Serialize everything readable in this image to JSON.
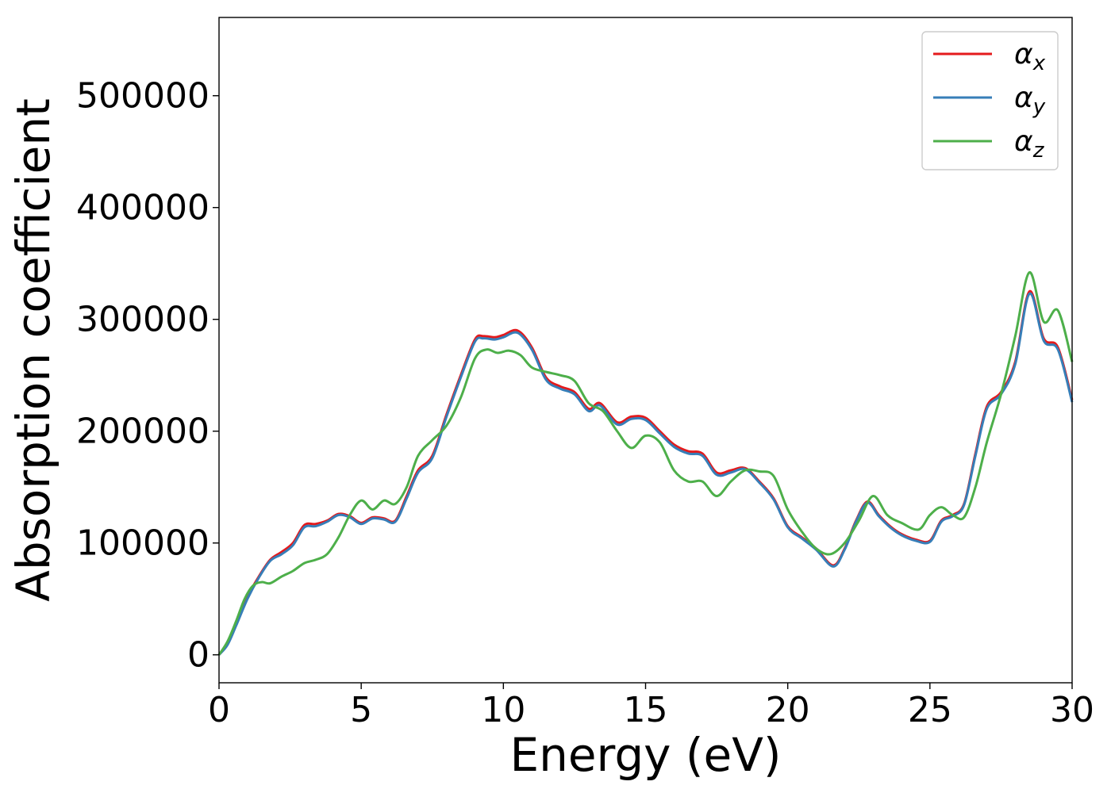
{
  "chart_data": {
    "type": "line",
    "title": "",
    "xlabel": "Energy (eV)",
    "ylabel": "Absorption coefficient",
    "xlim": [
      0,
      30
    ],
    "ylim": [
      -25000,
      570000
    ],
    "xticks": [
      0,
      5,
      10,
      15,
      20,
      25,
      30
    ],
    "yticks": [
      0,
      100000,
      200000,
      300000,
      400000,
      500000
    ],
    "xtick_labels": [
      "0",
      "5",
      "10",
      "15",
      "20",
      "25",
      "30"
    ],
    "ytick_labels": [
      "0",
      "100000",
      "200000",
      "300000",
      "400000",
      "500000"
    ],
    "grid": false,
    "legend_position": "top-right",
    "series": [
      {
        "name": "α",
        "subscript": "x",
        "color": "#e41a1c",
        "x": [
          0,
          0.3,
          0.6,
          1.0,
          1.4,
          1.8,
          2.2,
          2.6,
          3.0,
          3.4,
          3.8,
          4.2,
          4.6,
          5.0,
          5.4,
          5.8,
          6.2,
          6.6,
          7.0,
          7.5,
          8.0,
          8.5,
          9.0,
          9.3,
          9.7,
          10.0,
          10.5,
          11.0,
          11.5,
          12.0,
          12.5,
          13.0,
          13.4,
          14.0,
          14.5,
          15.0,
          15.5,
          16.0,
          16.5,
          17.0,
          17.5,
          18.0,
          18.5,
          19.0,
          19.5,
          20.0,
          20.5,
          21.0,
          21.6,
          22.0,
          22.4,
          22.8,
          23.2,
          23.6,
          24.0,
          24.5,
          25.0,
          25.4,
          25.8,
          26.2,
          26.6,
          27.0,
          27.5,
          28.0,
          28.5,
          29.0,
          29.5,
          30.0
        ],
        "y": [
          0,
          10000,
          28000,
          52000,
          70000,
          85000,
          92000,
          100000,
          116000,
          117000,
          120000,
          126000,
          124000,
          118000,
          123000,
          122000,
          120000,
          142000,
          165000,
          178000,
          215000,
          250000,
          282000,
          285000,
          284000,
          286000,
          290000,
          275000,
          248000,
          240000,
          235000,
          220000,
          225000,
          208000,
          213000,
          212000,
          200000,
          188000,
          182000,
          180000,
          163000,
          165000,
          167000,
          155000,
          140000,
          115000,
          105000,
          95000,
          80000,
          95000,
          120000,
          137000,
          125000,
          115000,
          108000,
          103000,
          102000,
          120000,
          125000,
          135000,
          180000,
          222000,
          235000,
          262000,
          325000,
          283000,
          275000,
          228000
        ]
      },
      {
        "name": "α",
        "subscript": "y",
        "color": "#377eb8",
        "x": [
          0,
          0.3,
          0.6,
          1.0,
          1.4,
          1.8,
          2.2,
          2.6,
          3.0,
          3.4,
          3.8,
          4.2,
          4.6,
          5.0,
          5.4,
          5.8,
          6.2,
          6.6,
          7.0,
          7.5,
          8.0,
          8.5,
          9.0,
          9.3,
          9.7,
          10.0,
          10.5,
          11.0,
          11.5,
          12.0,
          12.5,
          13.0,
          13.4,
          14.0,
          14.5,
          15.0,
          15.5,
          16.0,
          16.5,
          17.0,
          17.5,
          18.0,
          18.5,
          19.0,
          19.5,
          20.0,
          20.5,
          21.0,
          21.6,
          22.0,
          22.4,
          22.8,
          23.2,
          23.6,
          24.0,
          24.5,
          25.0,
          25.4,
          25.8,
          26.2,
          26.6,
          27.0,
          27.5,
          28.0,
          28.5,
          29.0,
          29.5,
          30.0
        ],
        "y": [
          0,
          9000,
          26000,
          50000,
          69000,
          84000,
          90000,
          98000,
          114000,
          115000,
          119000,
          125000,
          123000,
          117000,
          122000,
          121000,
          119000,
          140000,
          163000,
          176000,
          213000,
          248000,
          280000,
          283000,
          282000,
          284000,
          288000,
          273000,
          246000,
          238000,
          233000,
          218000,
          223000,
          206000,
          211000,
          210000,
          198000,
          186000,
          180000,
          178000,
          161000,
          163000,
          166000,
          154000,
          139000,
          114000,
          104000,
          94000,
          79000,
          94000,
          119000,
          136000,
          124000,
          114000,
          107000,
          102000,
          101000,
          119000,
          124000,
          134000,
          178000,
          220000,
          233000,
          260000,
          323000,
          281000,
          273000,
          226000
        ]
      },
      {
        "name": "α",
        "subscript": "z",
        "color": "#4daf4a",
        "x": [
          0,
          0.3,
          0.6,
          0.9,
          1.2,
          1.5,
          1.8,
          2.2,
          2.6,
          3.0,
          3.4,
          3.8,
          4.2,
          4.6,
          5.0,
          5.4,
          5.8,
          6.2,
          6.6,
          7.0,
          7.5,
          8.0,
          8.5,
          9.0,
          9.4,
          9.8,
          10.2,
          10.6,
          11.0,
          11.5,
          12.0,
          12.5,
          13.0,
          13.5,
          14.0,
          14.5,
          15.0,
          15.5,
          16.0,
          16.5,
          17.0,
          17.5,
          18.0,
          18.5,
          19.0,
          19.5,
          20.0,
          20.5,
          21.0,
          21.5,
          22.0,
          22.5,
          23.0,
          23.5,
          24.0,
          24.6,
          25.0,
          25.4,
          25.8,
          26.2,
          26.6,
          27.0,
          27.5,
          28.0,
          28.5,
          29.0,
          29.5,
          30.0
        ],
        "y": [
          0,
          12000,
          30000,
          50000,
          62000,
          65000,
          64000,
          70000,
          75000,
          82000,
          85000,
          90000,
          105000,
          125000,
          138000,
          130000,
          138000,
          135000,
          150000,
          178000,
          192000,
          205000,
          230000,
          265000,
          273000,
          270000,
          272000,
          268000,
          257000,
          253000,
          250000,
          245000,
          225000,
          218000,
          200000,
          185000,
          196000,
          190000,
          165000,
          155000,
          155000,
          142000,
          155000,
          165000,
          164000,
          160000,
          130000,
          110000,
          95000,
          90000,
          100000,
          120000,
          142000,
          125000,
          118000,
          112000,
          125000,
          132000,
          125000,
          123000,
          150000,
          190000,
          233000,
          285000,
          342000,
          298000,
          308000,
          262000
        ]
      }
    ]
  }
}
